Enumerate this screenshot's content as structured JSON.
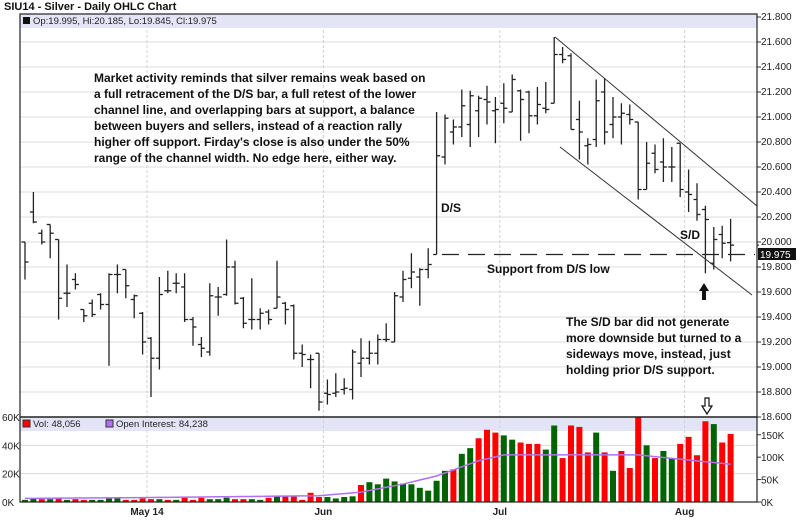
{
  "title": "SIU14 - Silver - Daily OHLC Chart",
  "chart_data": [
    {
      "type": "ohlc",
      "legend": "Op:19.995, Hi:20.185, Lo:19.845, Cl:19.975",
      "last_price_label": "19.975",
      "ylim": [
        18.6,
        21.8
      ],
      "yticks": [
        "21.800",
        "21.600",
        "21.400",
        "21.200",
        "21.000",
        "20.800",
        "20.600",
        "20.400",
        "20.200",
        "20.000",
        "19.800",
        "19.600",
        "19.400",
        "19.200",
        "19.000",
        "18.800",
        "18.600"
      ],
      "xticks": [
        {
          "date": "2014-05-01",
          "label": "May 14"
        },
        {
          "date": "2014-06-02",
          "label": "Jun"
        },
        {
          "date": "2014-07-01",
          "label": "Jul"
        },
        {
          "date": "2014-08-01",
          "label": "Aug"
        }
      ],
      "grid": true,
      "columns": [
        "date",
        "open",
        "high",
        "low",
        "close"
      ],
      "bars": [
        [
          "2014-04-09",
          20.0,
          20.0,
          19.7,
          19.84
        ],
        [
          "2014-04-10",
          20.24,
          20.4,
          20.15,
          20.16
        ],
        [
          "2014-04-11",
          20.07,
          20.1,
          19.98,
          20.0
        ],
        [
          "2014-04-14",
          20.14,
          20.14,
          19.87,
          20.07
        ],
        [
          "2014-04-15",
          20.02,
          20.02,
          19.38,
          19.55
        ],
        [
          "2014-04-16",
          19.59,
          19.82,
          19.48,
          19.59
        ],
        [
          "2014-04-17",
          19.7,
          19.75,
          19.62,
          19.66
        ],
        [
          "2014-04-21",
          19.46,
          19.46,
          19.36,
          19.41
        ],
        [
          "2014-04-22",
          19.51,
          19.54,
          19.4,
          19.42
        ],
        [
          "2014-04-23",
          19.58,
          19.59,
          19.46,
          19.5
        ],
        [
          "2014-04-24",
          19.5,
          19.75,
          19.01,
          19.74
        ],
        [
          "2014-04-25",
          19.74,
          19.82,
          19.59,
          19.74
        ],
        [
          "2014-04-28",
          19.78,
          19.78,
          19.55,
          19.65
        ],
        [
          "2014-04-29",
          19.54,
          19.58,
          19.39,
          19.57
        ],
        [
          "2014-04-30",
          19.43,
          19.44,
          19.1,
          19.2
        ],
        [
          "2014-05-01",
          19.23,
          19.24,
          18.76,
          19.07
        ],
        [
          "2014-05-02",
          19.07,
          19.72,
          18.98,
          19.58
        ],
        [
          "2014-05-05",
          19.61,
          19.77,
          19.59,
          19.61
        ],
        [
          "2014-05-06",
          19.67,
          19.75,
          19.59,
          19.67
        ],
        [
          "2014-05-07",
          19.64,
          19.75,
          19.36,
          19.38
        ],
        [
          "2014-05-08",
          19.38,
          19.4,
          19.17,
          19.32
        ],
        [
          "2014-05-09",
          19.18,
          19.24,
          19.08,
          19.15
        ],
        [
          "2014-05-12",
          19.12,
          19.67,
          19.09,
          19.57
        ],
        [
          "2014-05-13",
          19.56,
          19.64,
          19.41,
          19.56
        ],
        [
          "2014-05-14",
          19.58,
          20.02,
          19.57,
          19.8
        ],
        [
          "2014-05-15",
          19.8,
          19.85,
          19.5,
          19.51
        ],
        [
          "2014-05-16",
          19.55,
          19.56,
          19.31,
          19.35
        ],
        [
          "2014-05-19",
          19.38,
          19.71,
          19.3,
          19.38
        ],
        [
          "2014-05-20",
          19.38,
          19.47,
          19.3,
          19.43
        ],
        [
          "2014-05-21",
          19.44,
          19.46,
          19.34,
          19.38
        ],
        [
          "2014-05-22",
          19.47,
          19.85,
          19.47,
          19.56
        ],
        [
          "2014-05-23",
          19.51,
          19.52,
          19.34,
          19.46
        ],
        [
          "2014-05-27",
          19.49,
          19.5,
          19.06,
          19.11
        ],
        [
          "2014-05-28",
          19.11,
          19.18,
          19.0,
          19.1
        ],
        [
          "2014-05-29",
          19.06,
          19.1,
          18.83,
          19.06
        ],
        [
          "2014-05-30",
          19.11,
          19.11,
          18.65,
          18.72
        ],
        [
          "2014-06-02",
          18.79,
          18.9,
          18.7,
          18.78
        ],
        [
          "2014-06-03",
          18.79,
          18.95,
          18.76,
          18.8
        ],
        [
          "2014-06-04",
          18.82,
          18.91,
          18.78,
          18.83
        ],
        [
          "2014-06-05",
          18.82,
          19.14,
          18.74,
          19.12
        ],
        [
          "2014-06-06",
          19.03,
          19.23,
          18.92,
          19.07
        ],
        [
          "2014-06-09",
          19.07,
          19.21,
          19.02,
          19.11
        ],
        [
          "2014-06-10",
          19.11,
          19.26,
          19.02,
          19.22
        ],
        [
          "2014-06-11",
          19.22,
          19.35,
          19.2,
          19.22
        ],
        [
          "2014-06-12",
          19.2,
          19.6,
          19.2,
          19.57
        ],
        [
          "2014-06-13",
          19.56,
          19.77,
          19.52,
          19.7
        ],
        [
          "2014-06-16",
          19.71,
          19.91,
          19.63,
          19.76
        ],
        [
          "2014-06-17",
          19.72,
          19.79,
          19.49,
          19.78
        ],
        [
          "2014-06-18",
          19.78,
          19.95,
          19.71,
          19.82
        ],
        [
          "2014-06-19",
          19.9,
          21.04,
          19.9,
          20.69
        ],
        [
          "2014-06-20",
          20.68,
          21.02,
          20.62,
          20.99
        ],
        [
          "2014-06-23",
          20.88,
          20.98,
          20.78,
          20.92
        ],
        [
          "2014-06-24",
          20.92,
          21.22,
          20.84,
          21.09
        ],
        [
          "2014-06-25",
          20.94,
          21.21,
          20.76,
          21.17
        ],
        [
          "2014-06-26",
          21.05,
          21.17,
          20.84,
          21.15
        ],
        [
          "2014-06-27",
          21.14,
          21.25,
          20.94,
          21.12
        ],
        [
          "2014-06-30",
          21.05,
          21.16,
          20.79,
          21.06
        ],
        [
          "2014-07-01",
          21.11,
          21.27,
          20.95,
          21.07
        ],
        [
          "2014-07-02",
          21.04,
          21.34,
          21.04,
          21.3
        ],
        [
          "2014-07-03",
          21.21,
          21.22,
          20.81,
          21.14
        ],
        [
          "2014-07-07",
          21.2,
          21.21,
          20.87,
          21.01
        ],
        [
          "2014-07-08",
          21.01,
          21.24,
          20.94,
          21.1
        ],
        [
          "2014-07-09",
          21.07,
          21.28,
          21.03,
          21.06
        ],
        [
          "2014-07-10",
          21.11,
          21.64,
          21.11,
          21.5
        ],
        [
          "2014-07-11",
          21.5,
          21.56,
          21.43,
          21.46
        ],
        [
          "2014-07-14",
          21.49,
          21.51,
          20.9,
          20.9
        ],
        [
          "2014-07-15",
          20.98,
          21.13,
          20.66,
          20.88
        ],
        [
          "2014-07-16",
          20.77,
          20.83,
          20.62,
          20.78
        ],
        [
          "2014-07-17",
          20.82,
          21.3,
          20.76,
          21.13
        ],
        [
          "2014-07-18",
          21.2,
          21.31,
          20.78,
          20.88
        ],
        [
          "2014-07-21",
          20.94,
          21.16,
          20.83,
          21.0
        ],
        [
          "2014-07-22",
          21.0,
          21.11,
          20.78,
          21.03
        ],
        [
          "2014-07-23",
          21.02,
          21.1,
          20.94,
          20.98
        ],
        [
          "2014-07-24",
          20.96,
          20.96,
          20.34,
          20.42
        ],
        [
          "2014-07-25",
          20.42,
          20.8,
          20.42,
          20.63
        ],
        [
          "2014-07-28",
          20.71,
          20.78,
          20.55,
          20.58
        ],
        [
          "2014-07-29",
          20.64,
          20.83,
          20.48,
          20.6
        ],
        [
          "2014-07-30",
          20.6,
          20.76,
          20.48,
          20.6
        ],
        [
          "2014-07-31",
          20.79,
          20.79,
          20.36,
          20.42
        ],
        [
          "2014-08-01",
          20.4,
          20.58,
          20.24,
          20.38
        ],
        [
          "2014-08-04",
          20.34,
          20.47,
          20.17,
          20.22
        ],
        [
          "2014-08-05",
          20.26,
          20.29,
          19.75,
          20.18
        ],
        [
          "2014-08-06",
          19.83,
          20.12,
          19.78,
          20.02
        ],
        [
          "2014-08-07",
          20.06,
          20.13,
          19.87,
          19.99
        ],
        [
          "2014-08-08",
          19.995,
          20.185,
          19.845,
          19.975
        ]
      ]
    },
    {
      "type": "bar",
      "legend_volume": "Vol: 48,056",
      "legend_oi": "Open Interest: 84,238",
      "ylim_volume_k": [
        0,
        60
      ],
      "yticks_left": [
        "60K",
        "40K",
        "20K",
        "0K"
      ],
      "ylim_oi_k": [
        0,
        150
      ],
      "yticks_right": [
        "150K",
        "100K",
        "50K",
        "0K"
      ],
      "volume_k": [
        1.5,
        2.5,
        2,
        2,
        2.5,
        1.5,
        2,
        1.5,
        1.5,
        1.5,
        2.5,
        2.5,
        1.5,
        1.5,
        2.5,
        2,
        2,
        1.5,
        1.5,
        3,
        1.5,
        3,
        2,
        2,
        3,
        2,
        2,
        2,
        1.5,
        3,
        4,
        4,
        4,
        1.5,
        6.5,
        3.5,
        3.5,
        2.5,
        3.5,
        4,
        12,
        14,
        12.5,
        16.5,
        14.5,
        13,
        12.5,
        10,
        8,
        15,
        22,
        23,
        34,
        38,
        45,
        51,
        49,
        47,
        44,
        42,
        41,
        41,
        37,
        54,
        31,
        54,
        53,
        35,
        49,
        35,
        22,
        36,
        24,
        60,
        40,
        31,
        36,
        31,
        41,
        46,
        33,
        57,
        55,
        42,
        48.056
      ],
      "volume_up": [
        1,
        1,
        0,
        1,
        0,
        1,
        0,
        0,
        1,
        1,
        1,
        1,
        0,
        0,
        0,
        0,
        1,
        0,
        1,
        0,
        0,
        0,
        1,
        1,
        1,
        0,
        0,
        1,
        1,
        0,
        1,
        0,
        0,
        0,
        0,
        0,
        1,
        1,
        1,
        1,
        0,
        1,
        1,
        1,
        1,
        1,
        1,
        1,
        1,
        1,
        1,
        0,
        1,
        1,
        0,
        0,
        0,
        1,
        1,
        0,
        0,
        0,
        1,
        1,
        0,
        0,
        0,
        0,
        1,
        0,
        1,
        0,
        0,
        0,
        1,
        0,
        1,
        1,
        0,
        0,
        0,
        0,
        1,
        0,
        0
      ],
      "open_interest_k": [
        [
          "2014-04-09",
          8
        ],
        [
          "2014-05-01",
          10
        ],
        [
          "2014-05-30",
          14
        ],
        [
          "2014-06-06",
          22
        ],
        [
          "2014-06-13",
          40
        ],
        [
          "2014-06-19",
          58
        ],
        [
          "2014-06-26",
          92
        ],
        [
          "2014-07-01",
          105
        ],
        [
          "2014-07-24",
          105
        ],
        [
          "2014-08-08",
          84.238
        ]
      ],
      "colors": {
        "up": "#006400",
        "down": "#ff0000",
        "oi": "#b070f0"
      }
    }
  ],
  "annotations": {
    "main_text": "Market activity reminds that silver remains weak based on a full retracement of the D/S bar, a full retest of the lower channel line, and overlapping bars at support, a balance between buyers and sellers, instead of a reaction rally higher off support. Firday's close is also under the 50% range of the channel width.  No edge here, either way.",
    "ds_label": "D/S",
    "sd_label": "S/D",
    "support_label": "Support from D/S low",
    "support_price": 19.9,
    "sd_text": "The S/D bar did not generate more downside but turned to a sideways move, instead, just holding prior D/S support."
  }
}
